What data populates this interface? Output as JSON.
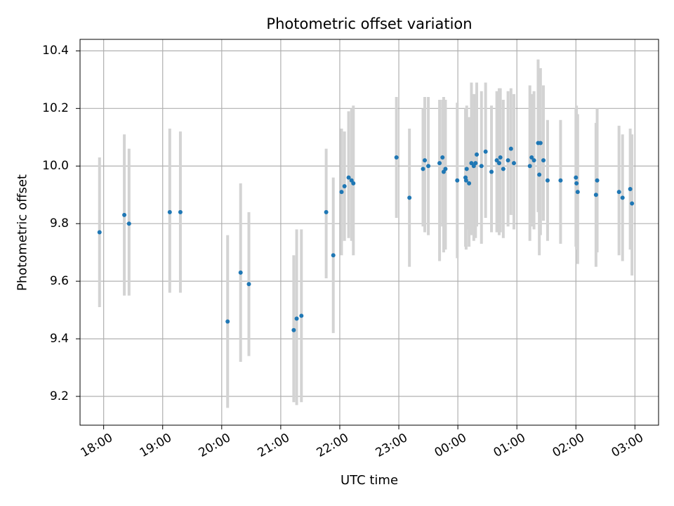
{
  "chart_data": {
    "type": "scatter",
    "title": "Photometric offset variation",
    "xlabel": "UTC time",
    "ylabel": "Photometric offset",
    "xlim": [
      -6.4,
      3.4
    ],
    "ylim": [
      9.1,
      10.44
    ],
    "grid": true,
    "yticks": [
      9.2,
      9.4,
      9.6,
      9.8,
      10.0,
      10.2,
      10.4
    ],
    "ytick_labels": [
      "9.2",
      "9.4",
      "9.6",
      "9.8",
      "10.0",
      "10.2",
      "10.4"
    ],
    "xticks": [
      -6,
      -5,
      -4,
      -3,
      -2,
      -1,
      0,
      1,
      2,
      3
    ],
    "xtick_labels": [
      "18:00",
      "19:00",
      "20:00",
      "21:00",
      "22:00",
      "23:00",
      "00:00",
      "01:00",
      "02:00",
      "03:00"
    ],
    "point_color": "#1f77b4",
    "errorbar_color": "#d3d3d3",
    "series": [
      {
        "name": "Photometric offset",
        "x": [
          -6.07,
          -5.65,
          -5.57,
          -4.88,
          -4.7,
          -3.9,
          -3.68,
          -3.54,
          -2.78,
          -2.73,
          -2.65,
          -2.23,
          -2.11,
          -1.97,
          -1.92,
          -1.85,
          -1.8,
          -1.77,
          -1.04,
          -0.82,
          -0.59,
          -0.56,
          -0.5,
          -0.31,
          -0.26,
          -0.24,
          -0.21,
          -0.01,
          0.13,
          0.14,
          0.15,
          0.19,
          0.23,
          0.27,
          0.3,
          0.32,
          0.4,
          0.47,
          0.57,
          0.66,
          0.7,
          0.72,
          0.77,
          0.85,
          0.9,
          0.95,
          1.22,
          1.25,
          1.29,
          1.36,
          1.38,
          1.4,
          1.45,
          1.52,
          1.74,
          2.0,
          2.01,
          2.03,
          2.34,
          2.36,
          2.73,
          2.79,
          2.92,
          2.95
        ],
        "y": [
          9.77,
          9.83,
          9.8,
          9.84,
          9.84,
          9.46,
          9.63,
          9.59,
          9.43,
          9.47,
          9.48,
          9.84,
          9.69,
          9.91,
          9.93,
          9.96,
          9.95,
          9.94,
          10.03,
          9.89,
          9.99,
          10.02,
          10.0,
          10.01,
          10.03,
          9.98,
          9.99,
          9.95,
          9.96,
          9.95,
          9.99,
          9.94,
          10.01,
          10.0,
          10.01,
          10.04,
          10.0,
          10.05,
          9.98,
          10.02,
          10.01,
          10.03,
          9.99,
          10.02,
          10.06,
          10.01,
          10.0,
          10.03,
          10.02,
          10.08,
          9.97,
          10.08,
          10.02,
          9.95,
          9.95,
          9.96,
          9.94,
          9.91,
          9.9,
          9.95,
          9.91,
          9.89,
          9.92,
          9.87
        ],
        "err_low": [
          9.51,
          9.55,
          9.55,
          9.56,
          9.56,
          9.16,
          9.32,
          9.34,
          9.18,
          9.17,
          9.18,
          9.61,
          9.42,
          9.69,
          9.74,
          9.75,
          9.74,
          9.69,
          9.82,
          9.65,
          9.79,
          9.77,
          9.76,
          9.67,
          9.79,
          9.7,
          9.71,
          9.68,
          9.72,
          9.71,
          9.78,
          9.72,
          9.76,
          9.74,
          9.75,
          9.79,
          9.73,
          9.82,
          9.77,
          9.77,
          9.76,
          9.77,
          9.75,
          9.79,
          9.83,
          9.78,
          9.74,
          9.79,
          9.78,
          9.84,
          9.69,
          9.76,
          9.81,
          9.74,
          9.73,
          9.72,
          9.71,
          9.66,
          9.65,
          9.7,
          9.69,
          9.67,
          9.71,
          9.62
        ],
        "err_high": [
          10.03,
          10.11,
          10.06,
          10.13,
          10.12,
          9.76,
          9.94,
          9.84,
          9.69,
          9.78,
          9.78,
          10.06,
          9.96,
          10.13,
          10.12,
          10.19,
          10.2,
          10.21,
          10.24,
          10.13,
          10.2,
          10.24,
          10.24,
          10.23,
          10.23,
          10.24,
          10.23,
          10.22,
          10.2,
          10.19,
          10.21,
          10.17,
          10.29,
          10.25,
          10.25,
          10.29,
          10.26,
          10.29,
          10.21,
          10.26,
          10.27,
          10.27,
          10.23,
          10.26,
          10.27,
          10.25,
          10.28,
          10.25,
          10.26,
          10.37,
          10.32,
          10.34,
          10.28,
          10.16,
          10.16,
          10.2,
          10.21,
          10.18,
          10.15,
          10.2,
          10.14,
          10.11,
          10.13,
          10.11
        ]
      }
    ]
  }
}
